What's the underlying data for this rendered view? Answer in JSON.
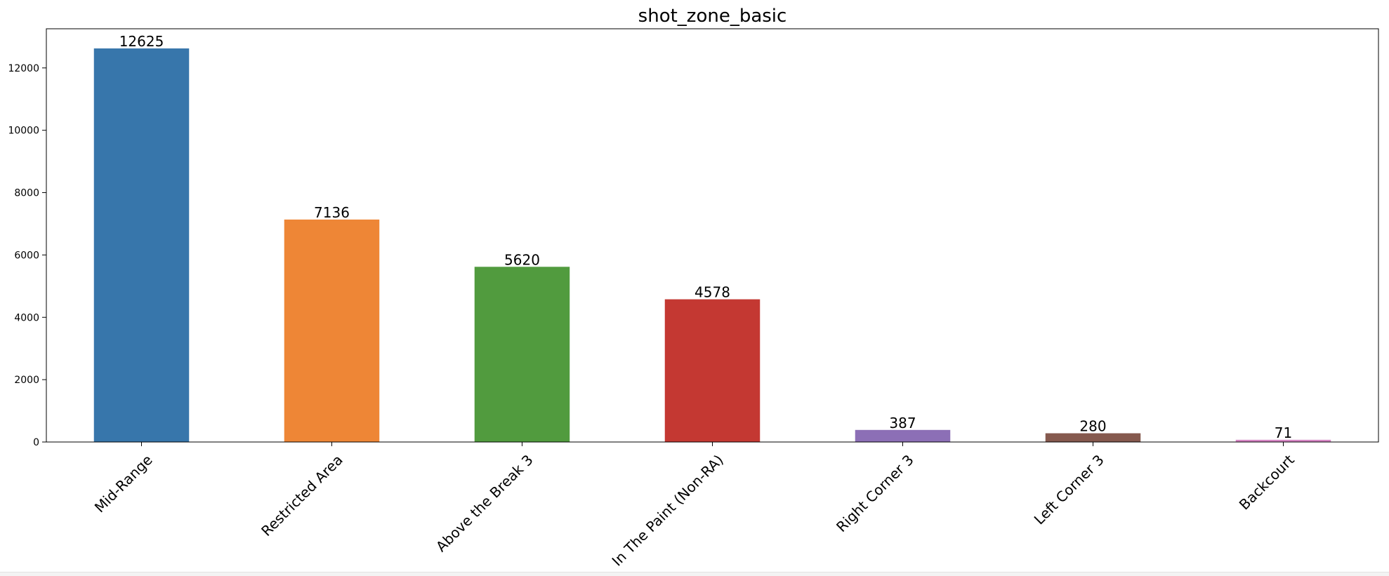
{
  "chart_data": {
    "type": "bar",
    "title": "shot_zone_basic",
    "xlabel": "",
    "ylabel": "",
    "categories": [
      "Mid-Range",
      "Restricted Area",
      "Above the Break 3",
      "In The Paint (Non-RA)",
      "Right Corner 3",
      "Left Corner 3",
      "Backcourt"
    ],
    "values": [
      12625,
      7136,
      5620,
      4578,
      387,
      280,
      71
    ],
    "data_labels": [
      "12625",
      "7136",
      "5620",
      "4578",
      "387",
      "280",
      "71"
    ],
    "colors": [
      "#3776ab",
      "#ee8636",
      "#519b3e",
      "#c43832",
      "#8c6fb6",
      "#85594e",
      "#d685c4"
    ],
    "ylim": [
      0,
      13256
    ],
    "yticks": [
      0,
      2000,
      4000,
      6000,
      8000,
      10000,
      12000
    ],
    "ytick_labels": [
      "0",
      "2000",
      "4000",
      "6000",
      "8000",
      "10000",
      "12000"
    ],
    "grid": false,
    "legend": "none",
    "xtick_rotation_deg": 45
  }
}
